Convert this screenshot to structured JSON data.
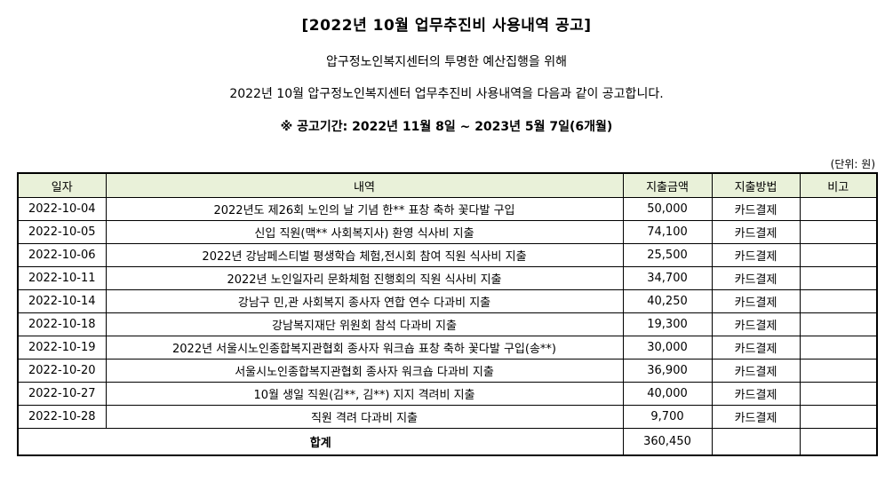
{
  "title": "[2022년 10월 업무추진비 사용내역 공고]",
  "intro_line1": "압구정노인복지센터의 투명한 예산집행을 위해",
  "intro_line2": "2022년 10월 압구정노인복지센터 업무추진비 사용내역을 다음과 같이 공고합니다.",
  "period": "※ 공고기간: 2022년 11월 8일 ~ 2023년 5월 7일(6개월)",
  "unit": "(단위: 원)",
  "table": {
    "headers": [
      "일자",
      "내역",
      "지출금액",
      "지출방법",
      "비고"
    ],
    "rows": [
      {
        "date": "2022-10-04",
        "desc": "2022년도 제26회 노인의 날 기념 한** 표창 축하 꽃다발 구입",
        "amount": "50,000",
        "method": "카드결제",
        "note": ""
      },
      {
        "date": "2022-10-05",
        "desc": "신입 직원(맥** 사회복지사) 환영 식사비 지출",
        "amount": "74,100",
        "method": "카드결제",
        "note": ""
      },
      {
        "date": "2022-10-06",
        "desc": "2022년 강남페스티벌 평생학습 체험,전시회 참여 직원 식사비 지출",
        "amount": "25,500",
        "method": "카드결제",
        "note": ""
      },
      {
        "date": "2022-10-11",
        "desc": "2022년 노인일자리 문화체험 진행회의 직원 식사비 지출",
        "amount": "34,700",
        "method": "카드결제",
        "note": ""
      },
      {
        "date": "2022-10-14",
        "desc": "강남구 민,관 사회복지 종사자 연합 연수 다과비 지출",
        "amount": "40,250",
        "method": "카드결제",
        "note": ""
      },
      {
        "date": "2022-10-18",
        "desc": "강남복지재단 위원회 참석 다과비 지출",
        "amount": "19,300",
        "method": "카드결제",
        "note": ""
      },
      {
        "date": "2022-10-19",
        "desc": "2022년 서울시노인종합복지관협회 종사자 워크숍 표창 축하 꽃다발 구입(송**)",
        "amount": "30,000",
        "method": "카드결제",
        "note": ""
      },
      {
        "date": "2022-10-20",
        "desc": "서울시노인종합복지관협회 종사자 워크숍 다과비 지출",
        "amount": "36,900",
        "method": "카드결제",
        "note": ""
      },
      {
        "date": "2022-10-27",
        "desc": "10월 생일 직원(김**, 김**) 지지 격려비 지출",
        "amount": "40,000",
        "method": "카드결제",
        "note": ""
      },
      {
        "date": "2022-10-28",
        "desc": "직원 격려 다과비 지출",
        "amount": "9,700",
        "method": "카드결제",
        "note": ""
      }
    ],
    "total_label": "합계",
    "total_amount": "360,450"
  },
  "colors": {
    "header_bg": "#e9f1d9"
  }
}
